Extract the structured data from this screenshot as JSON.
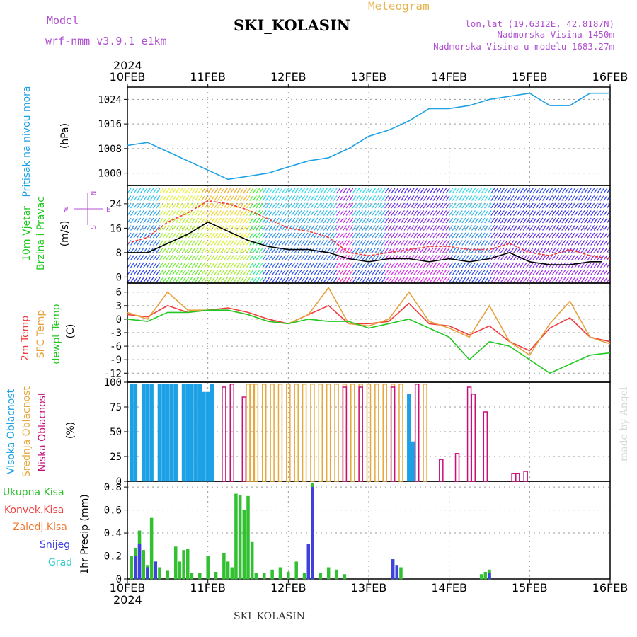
{
  "header": {
    "model_label": "Model",
    "model_name": "wrf-nmm_v3.9.1 e1km",
    "title": "SKI_KOLASIN",
    "product": "Meteogram",
    "lonlat": "lon,lat (19.6312E, 42.8187N)",
    "altitude": "Nadmorska Visina 1450m",
    "model_altitude": "Nadmorska Visina u modelu 1683.27m",
    "year_top": "2024",
    "year_bottom": "2024",
    "footer_title": "SKI_KOLASIN",
    "signature": "made by Angel"
  },
  "colors": {
    "pressure": "#1ca0e6",
    "temp2m": "#f03c3c",
    "sfc": "#e6a03c",
    "dew": "#22c822",
    "high_cloud": "#1ca0e6",
    "mid_cloud": "#e6a83c",
    "low_cloud": "#c8107a",
    "total_precip": "#30c030",
    "conv_precip": "#f04040",
    "frozen_precip": "#f07830",
    "snow": "#4040e0",
    "graupel": "#30c8c8",
    "accent_purple": "#b050d0",
    "product_orange": "#e6b450"
  },
  "chart_data": [
    {
      "type": "line",
      "name": "pressure",
      "ylabel": [
        "Pritisak na nivou mora",
        "(hPa)"
      ],
      "x_ticks": [
        "10FEB",
        "11FEB",
        "12FEB",
        "13FEB",
        "14FEB",
        "15FEB",
        "16FEB"
      ],
      "yticks": [
        1000,
        1008,
        1016,
        1024
      ],
      "ylim": [
        996,
        1028
      ],
      "grid": true,
      "series": [
        {
          "color_key": "pressure",
          "x": [
            0,
            0.25,
            0.5,
            0.75,
            1.0,
            1.25,
            1.5,
            1.75,
            2.0,
            2.25,
            2.5,
            2.75,
            3.0,
            3.25,
            3.5,
            3.75,
            4.0,
            4.25,
            4.5,
            4.75,
            5.0,
            5.25,
            5.5,
            5.75,
            6.0
          ],
          "y": [
            1009,
            1010,
            1007,
            1004,
            1001,
            998,
            999,
            1000,
            1002,
            1004,
            1005,
            1008,
            1012,
            1014,
            1017,
            1021,
            1021,
            1022,
            1024,
            1025,
            1026,
            1022,
            1022,
            1026,
            1026
          ]
        }
      ]
    },
    {
      "type": "line",
      "name": "wind",
      "ylabel": [
        "10m Vjetar",
        "Brzina i Pravac",
        "(m/s)"
      ],
      "compass": [
        "N",
        "E",
        "S",
        "W"
      ],
      "yticks": [
        0,
        8,
        16,
        24
      ],
      "ylim": [
        -2,
        30
      ],
      "grid": true,
      "series": [
        {
          "kind": "mean",
          "color": "#000000",
          "x": [
            0,
            0.25,
            0.5,
            0.75,
            1.0,
            1.25,
            1.5,
            1.75,
            2.0,
            2.25,
            2.5,
            2.75,
            3.0,
            3.25,
            3.5,
            3.75,
            4.0,
            4.25,
            4.5,
            4.75,
            5.0,
            5.25,
            5.5,
            5.75,
            5.9
          ],
          "y": [
            8,
            8,
            11,
            14,
            18,
            15,
            12,
            10,
            9,
            9,
            8,
            6,
            5,
            6,
            6,
            5,
            6,
            5,
            6,
            8,
            5,
            4,
            4,
            5,
            5
          ]
        },
        {
          "kind": "gust",
          "color": "#f03c3c",
          "x": [
            0,
            0.25,
            0.5,
            0.75,
            1.0,
            1.25,
            1.5,
            1.75,
            2.0,
            2.25,
            2.5,
            2.75,
            3.0,
            3.25,
            3.5,
            3.75,
            4.0,
            4.25,
            4.5,
            4.75,
            5.0,
            5.25,
            5.5,
            5.75,
            6.0
          ],
          "y": [
            11,
            13,
            18,
            21,
            25,
            24,
            22,
            19,
            16,
            15,
            13,
            8,
            7,
            8,
            9,
            10,
            10,
            9,
            9,
            11,
            8,
            7,
            9,
            7,
            6
          ]
        }
      ]
    },
    {
      "type": "line",
      "name": "temperature",
      "ylabel": [
        "2m Temp",
        "SFC Temp",
        "dewpt Temp",
        "(C)"
      ],
      "yticks": [
        6,
        3,
        0,
        -3,
        -6,
        -9,
        -12
      ],
      "ylim": [
        -14,
        8
      ],
      "grid": true,
      "series": [
        {
          "color_key": "temp2m",
          "x": [
            0,
            0.25,
            0.5,
            0.75,
            1.0,
            1.25,
            1.5,
            1.75,
            2.0,
            2.25,
            2.5,
            2.75,
            3.0,
            3.25,
            3.5,
            3.75,
            4.0,
            4.25,
            4.5,
            4.75,
            5.0,
            5.25,
            5.5,
            5.75,
            6.0
          ],
          "y": [
            1,
            0.5,
            3,
            1.5,
            2,
            2.5,
            1.5,
            0,
            -1,
            1,
            3,
            -1,
            -1,
            -0.5,
            3.5,
            -1,
            -1.5,
            -3.5,
            -1.5,
            -5,
            -7,
            -2,
            0.3,
            -4,
            -5
          ]
        },
        {
          "color_key": "sfc",
          "x": [
            0,
            0.25,
            0.5,
            0.75,
            1.0,
            1.25,
            1.5,
            1.75,
            2.0,
            2.25,
            2.5,
            2.75,
            3.0,
            3.25,
            3.5,
            3.75,
            4.0,
            4.25,
            4.5,
            4.75,
            5.0,
            5.25,
            5.5,
            5.75,
            6.0
          ],
          "y": [
            1.5,
            0,
            6,
            2,
            2,
            2,
            1,
            -0.5,
            -1,
            1,
            7,
            -1,
            -1.5,
            0,
            6,
            -0.5,
            -2,
            -4,
            3,
            -5,
            -8,
            -1,
            4,
            -4,
            -5.5
          ]
        },
        {
          "color_key": "dew",
          "x": [
            0,
            0.25,
            0.5,
            0.75,
            1.0,
            1.25,
            1.5,
            1.75,
            2.0,
            2.25,
            2.5,
            2.75,
            3.0,
            3.25,
            3.5,
            3.75,
            4.0,
            4.25,
            4.5,
            4.75,
            5.0,
            5.25,
            5.5,
            5.75,
            6.0
          ],
          "y": [
            0,
            -0.5,
            1.5,
            1.5,
            2,
            2,
            1,
            -0.5,
            -1,
            0,
            -0.5,
            -0.5,
            -2,
            -1,
            0,
            -2,
            -4,
            -9,
            -5,
            -6,
            -9,
            -12,
            -10,
            -8,
            -7.5
          ]
        }
      ]
    },
    {
      "type": "bar",
      "name": "clouds",
      "ylabel": [
        "Visoka Oblacnost",
        "Srednja Oblacnost",
        "Niska Oblacnost",
        "(%)"
      ],
      "yticks": [
        0,
        25,
        50,
        75,
        100
      ],
      "ylim": [
        0,
        100
      ],
      "grid": true,
      "series": [
        {
          "color_key": "high_cloud",
          "x": [
            0.05,
            0.1,
            0.2,
            0.25,
            0.3,
            0.4,
            0.45,
            0.5,
            0.55,
            0.6,
            0.7,
            0.75,
            0.8,
            0.85,
            0.9,
            0.95,
            1.0,
            1.05,
            3.5,
            3.55
          ],
          "y": [
            98,
            98,
            98,
            98,
            98,
            98,
            98,
            98,
            98,
            98,
            98,
            98,
            98,
            98,
            98,
            90,
            90,
            98,
            88,
            40
          ]
        },
        {
          "color_key": "mid_cloud",
          "x": [
            1.5,
            1.55,
            1.6,
            1.7,
            1.8,
            1.9,
            2.0,
            2.1,
            2.2,
            2.3,
            2.4,
            2.5,
            2.6,
            2.7,
            2.8,
            2.9,
            3.0,
            3.1,
            3.2,
            3.3,
            3.4,
            3.6,
            3.7
          ],
          "y": [
            98,
            98,
            98,
            98,
            98,
            98,
            98,
            98,
            98,
            98,
            98,
            98,
            98,
            98,
            98,
            98,
            98,
            98,
            98,
            98,
            98,
            98,
            98
          ]
        },
        {
          "color_key": "low_cloud",
          "x": [
            1.2,
            1.3,
            1.45,
            2.7,
            2.9,
            3.3,
            3.6,
            3.9,
            4.1,
            4.25,
            4.3,
            4.45,
            4.8,
            4.85,
            4.95
          ],
          "y": [
            95,
            98,
            85,
            95,
            95,
            95,
            98,
            22,
            28,
            95,
            88,
            70,
            8,
            8,
            10
          ]
        }
      ]
    },
    {
      "type": "bar",
      "name": "precipitation",
      "ylabel": [
        "1hr Precip (mm)"
      ],
      "legend": [
        "Ukupna Kisa",
        "Konvek.Kisa",
        "Zaledj.Kisa",
        "Snijeg",
        "Grad"
      ],
      "yticks": [
        0,
        0.2,
        0.4,
        0.6,
        0.8
      ],
      "ylim": [
        0,
        0.85
      ],
      "grid": true,
      "x_ticks": [
        "10FEB",
        "11FEB",
        "12FEB",
        "13FEB",
        "14FEB",
        "15FEB",
        "16FEB"
      ],
      "series": [
        {
          "color_key": "total_precip",
          "x": [
            0.05,
            0.1,
            0.15,
            0.2,
            0.25,
            0.3,
            0.35,
            0.4,
            0.5,
            0.6,
            0.65,
            0.7,
            0.75,
            0.8,
            0.9,
            1.0,
            1.1,
            1.2,
            1.25,
            1.3,
            1.35,
            1.4,
            1.45,
            1.5,
            1.55,
            1.6,
            1.7,
            1.8,
            1.9,
            2.0,
            2.1,
            2.2,
            2.25,
            2.3,
            2.4,
            2.5,
            2.6,
            2.7,
            3.3,
            3.35,
            3.4,
            4.4,
            4.45,
            4.5
          ],
          "y": [
            0.2,
            0.27,
            0.42,
            0.25,
            0.12,
            0.53,
            0.15,
            0.1,
            0.07,
            0.28,
            0.15,
            0.25,
            0.26,
            0.05,
            0.05,
            0.2,
            0.06,
            0.22,
            0.15,
            0.1,
            0.74,
            0.73,
            0.6,
            0.72,
            0.32,
            0.05,
            0.05,
            0.08,
            0.1,
            0.06,
            0.15,
            0.05,
            0.08,
            0.83,
            0.05,
            0.1,
            0.08,
            0.04,
            0.17,
            0.12,
            0.1,
            0.04,
            0.06,
            0.08
          ]
        },
        {
          "color_key": "snow",
          "x": [
            0.1,
            0.15,
            0.25,
            0.35,
            2.25,
            2.3,
            3.3,
            3.35,
            4.5
          ],
          "y": [
            0.2,
            0.3,
            0.1,
            0.15,
            0.3,
            0.8,
            0.17,
            0.12,
            0.05
          ]
        }
      ]
    }
  ]
}
